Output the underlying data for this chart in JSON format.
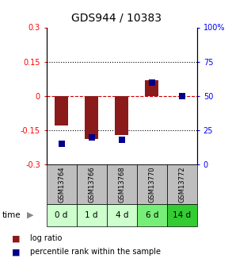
{
  "title": "GDS944 / 10383",
  "samples": [
    "GSM13764",
    "GSM13766",
    "GSM13768",
    "GSM13770",
    "GSM13772"
  ],
  "time_labels": [
    "0 d",
    "1 d",
    "4 d",
    "6 d",
    "14 d"
  ],
  "log_ratios": [
    -0.13,
    -0.19,
    -0.17,
    0.07,
    0.0
  ],
  "percentile_ranks": [
    15,
    20,
    18,
    60,
    50
  ],
  "left_ylim": [
    -0.3,
    0.3
  ],
  "right_ylim": [
    0,
    100
  ],
  "left_yticks": [
    -0.3,
    -0.15,
    0,
    0.15,
    0.3
  ],
  "right_yticks": [
    0,
    25,
    50,
    75,
    100
  ],
  "right_tick_labels": [
    "0",
    "25",
    "50",
    "75",
    "100%"
  ],
  "left_tick_labels": [
    "-0.3",
    "-0.15",
    "0",
    "0.15",
    "0.3"
  ],
  "bar_color": "#8B1A1A",
  "dot_color": "#00008B",
  "hline_color": "#CC0000",
  "dotted_color": "#000000",
  "bg_sample_gray": "#BEBEBE",
  "bg_time_colors": [
    "#CCFFCC",
    "#CCFFCC",
    "#CCFFCC",
    "#77EE77",
    "#33CC33"
  ],
  "bar_width": 0.45,
  "dot_size": 40,
  "title_fontsize": 10,
  "tick_fontsize": 7,
  "sample_fontsize": 6,
  "time_fontsize": 7.5,
  "legend_fontsize": 7
}
